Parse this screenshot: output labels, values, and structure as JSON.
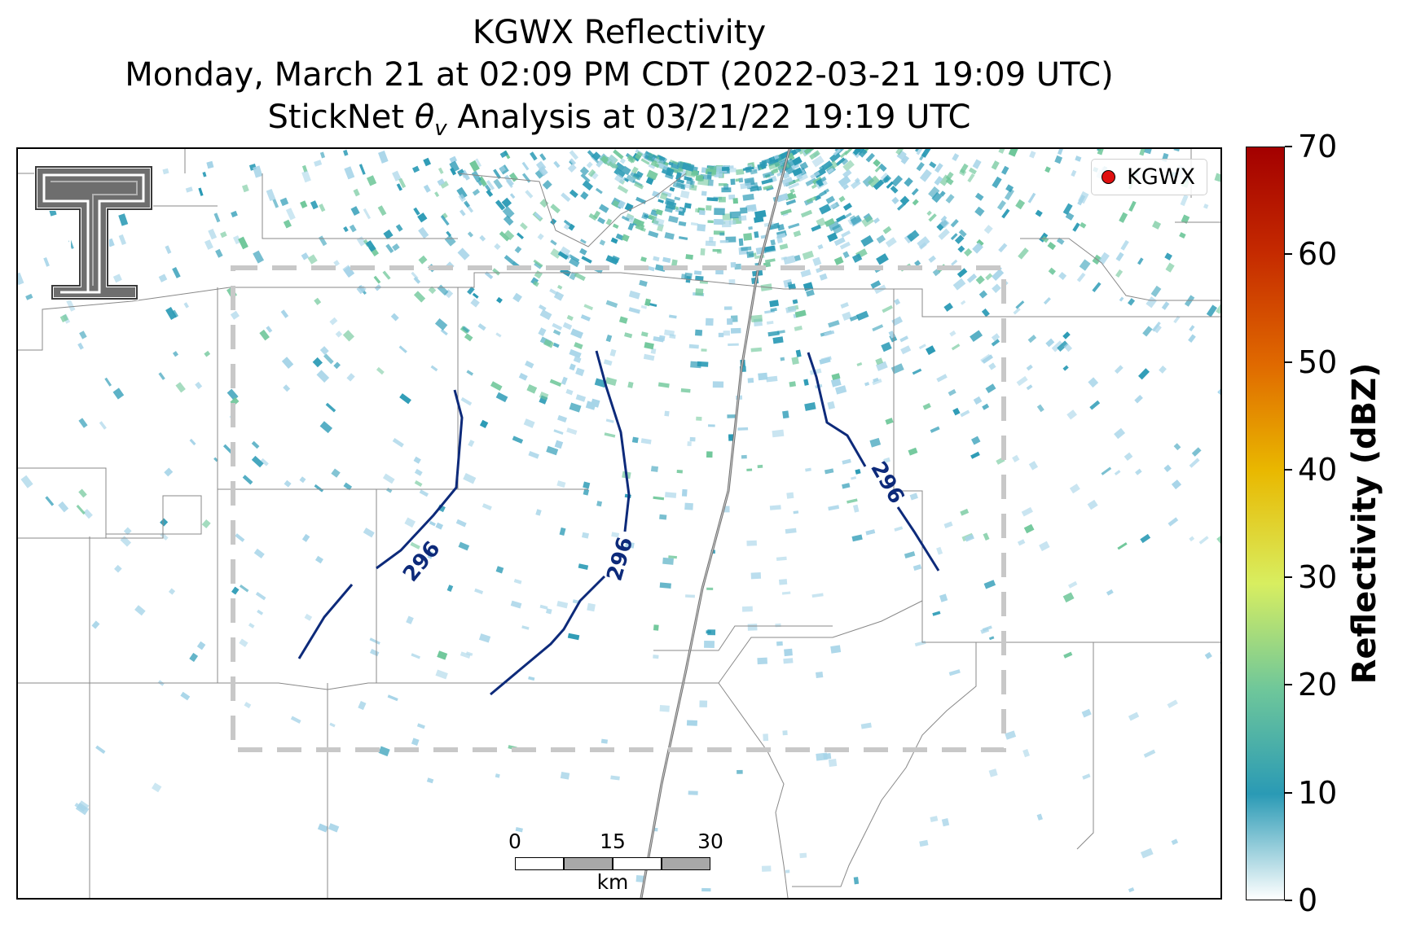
{
  "title": {
    "line1": "KGWX Reflectivity",
    "line2": "Monday, March 21 at 02:09 PM CDT (2022-03-21 19:09 UTC)",
    "line3_prefix": "StickNet ",
    "line3_symbol": "θ",
    "line3_subscript": "v",
    "line3_suffix": " Analysis at 03/21/22 19:19 UTC"
  },
  "legend": {
    "label": "KGWX",
    "marker_color": "#e01010"
  },
  "colorbar": {
    "label": "Reflectivity (dBZ)",
    "min": 0,
    "max": 70,
    "ticks": [
      "0",
      "10",
      "20",
      "30",
      "40",
      "50",
      "60",
      "70"
    ]
  },
  "scale_bar": {
    "ticks": [
      "0",
      "15",
      "30"
    ],
    "unit": "km"
  },
  "contours": {
    "level_label": "296",
    "color": "#0d2a7a"
  },
  "analysis_box_color": "#c8c8c8",
  "map_colors": {
    "boundary": "#888888",
    "reflectivity_low": "#a6d4e8",
    "reflectivity_mid": "#2a9ab5",
    "reflectivity_high": "#6fc79a"
  }
}
